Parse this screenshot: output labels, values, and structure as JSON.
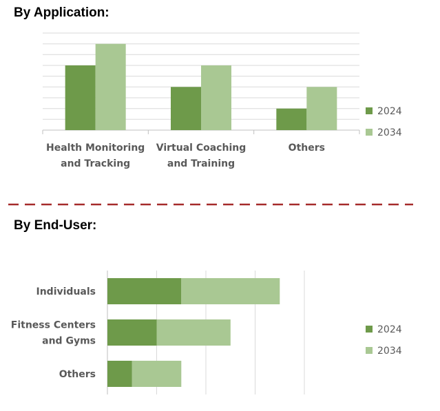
{
  "sections": {
    "application_title": "By Application:",
    "end_user_title": "By End-User:"
  },
  "colors": {
    "series_2024": "#6e9a4a",
    "series_2034": "#a9c893",
    "grid": "#d9d9d9",
    "axis": "#bfbfbf",
    "divider": "#a52a2a"
  },
  "chart_data": [
    {
      "type": "bar",
      "orientation": "vertical",
      "categories": [
        [
          "Health Monitoring",
          "and Tracking"
        ],
        [
          "Virtual Coaching",
          "and Training"
        ],
        [
          "Others"
        ]
      ],
      "series": [
        {
          "name": "2024",
          "values": [
            3,
            2,
            1
          ]
        },
        {
          "name": "2034",
          "values": [
            4,
            3,
            2
          ]
        }
      ],
      "ylim": [
        0,
        4.5
      ],
      "grid": true,
      "legend": "right"
    },
    {
      "type": "bar",
      "orientation": "horizontal",
      "stacked": true,
      "categories": [
        [
          "Individuals"
        ],
        [
          "Fitness Centers",
          "and Gyms"
        ],
        [
          "Others"
        ]
      ],
      "series": [
        {
          "name": "2024",
          "values": [
            3,
            2,
            1
          ]
        },
        {
          "name": "2034",
          "values": [
            4,
            3,
            2
          ]
        }
      ],
      "xlim": [
        0,
        8
      ],
      "grid": true,
      "legend": "right"
    }
  ]
}
